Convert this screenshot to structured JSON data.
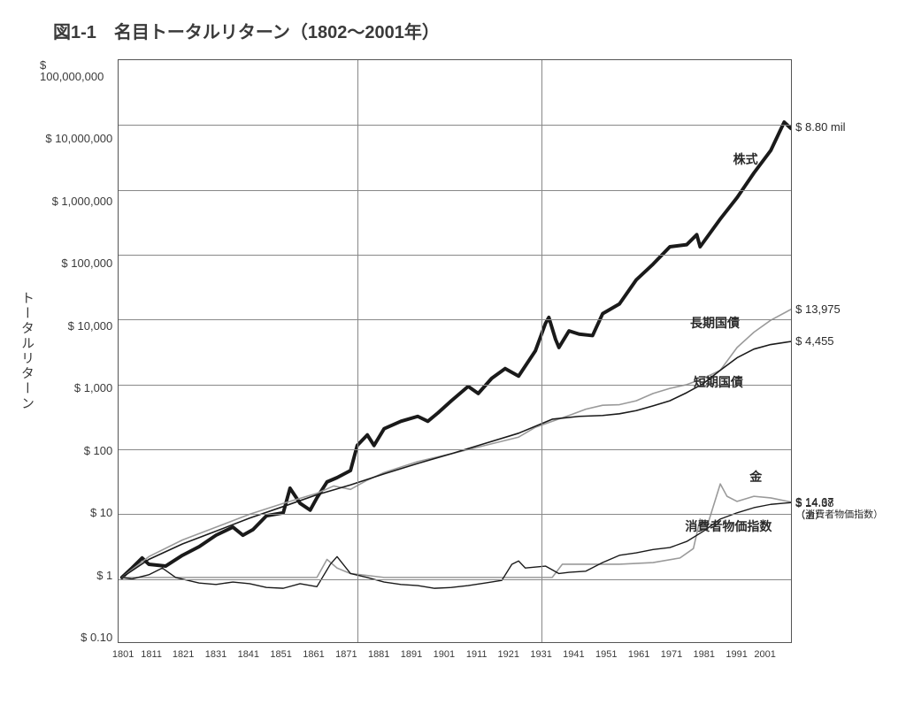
{
  "chart": {
    "type": "line",
    "title": "図1-1　名目トータルリターン（1802～2001年）",
    "y_axis_title": "トータルリターン",
    "background_color": "#ffffff",
    "grid_color": "#888888",
    "border_color": "#555555",
    "text_color": "#3a3a3a",
    "title_fontsize": 20,
    "label_fontsize": 14,
    "tick_fontsize": 13,
    "xtick_fontsize": 11,
    "yscale": "log",
    "ylim": [
      0.1,
      100000000
    ],
    "yticks": [
      "$ 100,000,000",
      "$ 10,000,000",
      "$ 1,000,000",
      "$ 100,000",
      "$ 10,000",
      "$ 1,000",
      "$ 100",
      "$ 10",
      "$ 1",
      "$ 0.10"
    ],
    "xlim": [
      1801,
      2001
    ],
    "xticks": [
      "1801",
      "1811",
      "1821",
      "1831",
      "1841",
      "1851",
      "1861",
      "1871",
      "1881",
      "1891",
      "1901",
      "1911",
      "1921",
      "1931",
      "1941",
      "1951",
      "1961",
      "1971",
      "1981",
      "1991",
      "2001"
    ],
    "vertical_dividers": [
      1871,
      1925
    ],
    "series": [
      {
        "name": "stocks",
        "label": "株式",
        "color": "#1a1a1a",
        "stroke_width": 4.0,
        "label_pos": {
          "x": 1985,
          "y": 3000000
        },
        "end_value": "$ 8.80 mil",
        "data": [
          [
            1802,
            1
          ],
          [
            1805,
            1.4
          ],
          [
            1808,
            2.0
          ],
          [
            1810,
            1.6
          ],
          [
            1815,
            1.5
          ],
          [
            1820,
            2.2
          ],
          [
            1825,
            3.0
          ],
          [
            1830,
            4.5
          ],
          [
            1835,
            6.0
          ],
          [
            1838,
            4.5
          ],
          [
            1841,
            5.5
          ],
          [
            1845,
            9.0
          ],
          [
            1850,
            10
          ],
          [
            1852,
            24
          ],
          [
            1855,
            14
          ],
          [
            1858,
            11
          ],
          [
            1860,
            17
          ],
          [
            1863,
            30
          ],
          [
            1866,
            35
          ],
          [
            1870,
            45
          ],
          [
            1872,
            110
          ],
          [
            1875,
            160
          ],
          [
            1877,
            110
          ],
          [
            1880,
            200
          ],
          [
            1885,
            260
          ],
          [
            1890,
            310
          ],
          [
            1893,
            260
          ],
          [
            1896,
            350
          ],
          [
            1900,
            540
          ],
          [
            1905,
            900
          ],
          [
            1908,
            700
          ],
          [
            1912,
            1200
          ],
          [
            1916,
            1700
          ],
          [
            1920,
            1300
          ],
          [
            1925,
            3200
          ],
          [
            1928,
            8500
          ],
          [
            1929,
            10500
          ],
          [
            1931,
            4800
          ],
          [
            1932,
            3600
          ],
          [
            1935,
            6500
          ],
          [
            1938,
            5800
          ],
          [
            1942,
            5500
          ],
          [
            1945,
            12000
          ],
          [
            1950,
            17000
          ],
          [
            1955,
            40000
          ],
          [
            1960,
            70000
          ],
          [
            1965,
            130000
          ],
          [
            1970,
            140000
          ],
          [
            1973,
            200000
          ],
          [
            1974,
            130000
          ],
          [
            1980,
            350000
          ],
          [
            1985,
            750000
          ],
          [
            1990,
            1800000
          ],
          [
            1995,
            4000000
          ],
          [
            1999,
            11000000
          ],
          [
            2001,
            8800000
          ]
        ]
      },
      {
        "name": "long_bonds",
        "label": "長期国債",
        "color": "#9a9a9a",
        "stroke_width": 1.6,
        "label_pos": {
          "x": 1976,
          "y": 9000
        },
        "end_value": "$ 13,975",
        "data": [
          [
            1802,
            1
          ],
          [
            1810,
            2.1
          ],
          [
            1820,
            3.8
          ],
          [
            1830,
            6.0
          ],
          [
            1840,
            9.5
          ],
          [
            1850,
            14
          ],
          [
            1860,
            20
          ],
          [
            1865,
            26
          ],
          [
            1870,
            23
          ],
          [
            1875,
            32
          ],
          [
            1880,
            42
          ],
          [
            1890,
            62
          ],
          [
            1900,
            82
          ],
          [
            1910,
            110
          ],
          [
            1920,
            148
          ],
          [
            1925,
            210
          ],
          [
            1930,
            260
          ],
          [
            1935,
            320
          ],
          [
            1940,
            400
          ],
          [
            1945,
            460
          ],
          [
            1950,
            470
          ],
          [
            1955,
            540
          ],
          [
            1960,
            700
          ],
          [
            1965,
            840
          ],
          [
            1970,
            960
          ],
          [
            1975,
            1200
          ],
          [
            1980,
            1600
          ],
          [
            1985,
            3600
          ],
          [
            1990,
            6200
          ],
          [
            1995,
            9500
          ],
          [
            2001,
            13975
          ]
        ]
      },
      {
        "name": "short_bonds",
        "label": "短期国債",
        "color": "#1a1a1a",
        "stroke_width": 1.6,
        "label_pos": {
          "x": 1977,
          "y": 1100
        },
        "end_value": "$ 4,455",
        "data": [
          [
            1802,
            1
          ],
          [
            1810,
            1.9
          ],
          [
            1820,
            3.3
          ],
          [
            1830,
            5.2
          ],
          [
            1840,
            8.3
          ],
          [
            1850,
            12.5
          ],
          [
            1860,
            19
          ],
          [
            1870,
            27
          ],
          [
            1880,
            40
          ],
          [
            1890,
            58
          ],
          [
            1900,
            82
          ],
          [
            1910,
            118
          ],
          [
            1920,
            170
          ],
          [
            1930,
            280
          ],
          [
            1938,
            310
          ],
          [
            1945,
            320
          ],
          [
            1950,
            340
          ],
          [
            1955,
            380
          ],
          [
            1960,
            450
          ],
          [
            1965,
            540
          ],
          [
            1970,
            720
          ],
          [
            1975,
            1000
          ],
          [
            1980,
            1600
          ],
          [
            1985,
            2500
          ],
          [
            1990,
            3400
          ],
          [
            1995,
            4000
          ],
          [
            2001,
            4455
          ]
        ]
      },
      {
        "name": "gold",
        "label": "金",
        "color": "#9a9a9a",
        "stroke_width": 1.6,
        "label_pos": {
          "x": 1988,
          "y": 38
        },
        "end_value": "$ 14.67",
        "end_note": "（消費者物価指数）",
        "data": [
          [
            1802,
            1
          ],
          [
            1810,
            1.0
          ],
          [
            1820,
            1.0
          ],
          [
            1830,
            1.0
          ],
          [
            1840,
            1.0
          ],
          [
            1850,
            1.0
          ],
          [
            1860,
            1.0
          ],
          [
            1863,
            1.9
          ],
          [
            1866,
            1.4
          ],
          [
            1870,
            1.15
          ],
          [
            1880,
            1.0
          ],
          [
            1890,
            1.0
          ],
          [
            1900,
            1.0
          ],
          [
            1910,
            1.0
          ],
          [
            1920,
            1.0
          ],
          [
            1930,
            1.0
          ],
          [
            1933,
            1.6
          ],
          [
            1940,
            1.6
          ],
          [
            1950,
            1.6
          ],
          [
            1960,
            1.7
          ],
          [
            1968,
            2.0
          ],
          [
            1972,
            2.8
          ],
          [
            1974,
            8.0
          ],
          [
            1976,
            6.0
          ],
          [
            1980,
            28
          ],
          [
            1982,
            18
          ],
          [
            1985,
            15
          ],
          [
            1990,
            18
          ],
          [
            1995,
            17
          ],
          [
            2001,
            14.67
          ]
        ]
      },
      {
        "name": "cpi",
        "label": "消費者物価指数",
        "color": "#1a1a1a",
        "stroke_width": 1.4,
        "label_pos": {
          "x": 1980,
          "y": 6.5
        },
        "end_value": "$ 14.38",
        "end_note": "（金）",
        "data": [
          [
            1802,
            1
          ],
          [
            1805,
            0.95
          ],
          [
            1810,
            1.1
          ],
          [
            1814,
            1.4
          ],
          [
            1818,
            1.0
          ],
          [
            1825,
            0.82
          ],
          [
            1830,
            0.78
          ],
          [
            1835,
            0.85
          ],
          [
            1840,
            0.8
          ],
          [
            1845,
            0.7
          ],
          [
            1850,
            0.68
          ],
          [
            1855,
            0.8
          ],
          [
            1860,
            0.72
          ],
          [
            1864,
            1.6
          ],
          [
            1866,
            2.1
          ],
          [
            1870,
            1.15
          ],
          [
            1875,
            1.0
          ],
          [
            1880,
            0.85
          ],
          [
            1885,
            0.78
          ],
          [
            1890,
            0.75
          ],
          [
            1895,
            0.68
          ],
          [
            1900,
            0.7
          ],
          [
            1905,
            0.75
          ],
          [
            1910,
            0.82
          ],
          [
            1915,
            0.9
          ],
          [
            1918,
            1.6
          ],
          [
            1920,
            1.8
          ],
          [
            1922,
            1.4
          ],
          [
            1928,
            1.5
          ],
          [
            1932,
            1.15
          ],
          [
            1935,
            1.2
          ],
          [
            1940,
            1.25
          ],
          [
            1945,
            1.7
          ],
          [
            1950,
            2.2
          ],
          [
            1955,
            2.4
          ],
          [
            1960,
            2.7
          ],
          [
            1965,
            2.9
          ],
          [
            1970,
            3.6
          ],
          [
            1975,
            5.2
          ],
          [
            1980,
            8.0
          ],
          [
            1985,
            10.0
          ],
          [
            1990,
            12.0
          ],
          [
            1995,
            13.5
          ],
          [
            2001,
            14.38
          ]
        ]
      }
    ]
  }
}
